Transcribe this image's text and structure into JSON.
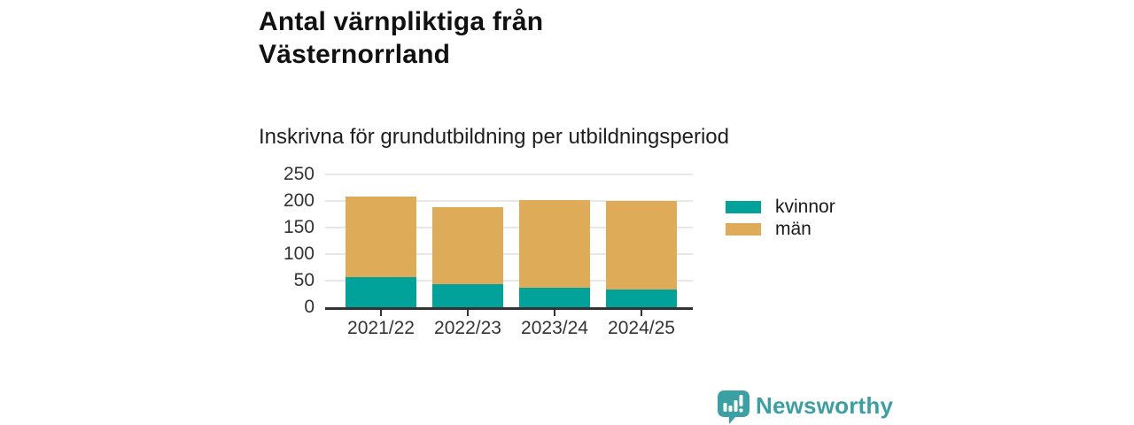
{
  "header": {
    "title_line1": "Antal värnpliktiga från",
    "title_line2": "Västernorrland",
    "subtitle": "Inskrivna för grundutbildning per utbildningsperiod"
  },
  "chart_data": {
    "type": "bar",
    "stacked": true,
    "title": "Antal värnpliktiga från Västernorrland",
    "subtitle": "Inskrivna för grundutbildning per utbildningsperiod",
    "categories": [
      "2021/22",
      "2022/23",
      "2023/24",
      "2024/25"
    ],
    "series": [
      {
        "key": "kvinnor",
        "name": "kvinnor",
        "color": "#00A29A",
        "values": [
          57,
          44,
          36,
          33
        ]
      },
      {
        "key": "man",
        "name": "män",
        "color": "#DEAC58",
        "values": [
          152,
          144,
          165,
          167
        ]
      }
    ],
    "xlabel": "",
    "ylabel": "",
    "ylim": [
      0,
      250
    ],
    "yticks": [
      0,
      50,
      100,
      150,
      200,
      250
    ],
    "grid": true,
    "legend_position": "right"
  },
  "legend": {
    "items": [
      {
        "label": "kvinnor",
        "color": "#00A29A"
      },
      {
        "label": "män",
        "color": "#DEAC58"
      }
    ]
  },
  "branding": {
    "name": "Newsworthy",
    "color": "#3BA0A3",
    "icon": "newsworthy-chart-bubble-icon"
  },
  "colors": {
    "title_text": "#111111",
    "axis_text": "#333333",
    "gridline": "#e8e8e8",
    "axis_line": "#333333",
    "background": "#ffffff"
  }
}
